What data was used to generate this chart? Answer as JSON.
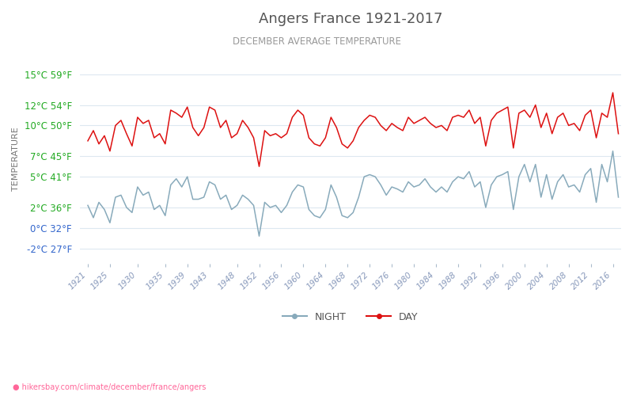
{
  "title": "Angers France 1921-2017",
  "subtitle": "DECEMBER AVERAGE TEMPERATURE",
  "ylabel": "TEMPERATURE",
  "url": "hikersbay.com/climate/december/france/angers",
  "title_color": "#555555",
  "subtitle_color": "#999999",
  "ylabel_color": "#777777",
  "background_color": "#ffffff",
  "grid_color": "#dde8f0",
  "years": [
    1921,
    1922,
    1923,
    1924,
    1925,
    1926,
    1927,
    1928,
    1929,
    1930,
    1931,
    1932,
    1933,
    1934,
    1935,
    1936,
    1937,
    1938,
    1939,
    1940,
    1941,
    1942,
    1943,
    1944,
    1945,
    1946,
    1947,
    1948,
    1949,
    1950,
    1951,
    1952,
    1953,
    1954,
    1955,
    1956,
    1957,
    1958,
    1959,
    1960,
    1961,
    1962,
    1963,
    1964,
    1965,
    1966,
    1967,
    1968,
    1969,
    1970,
    1971,
    1972,
    1973,
    1974,
    1975,
    1976,
    1977,
    1978,
    1979,
    1980,
    1981,
    1982,
    1983,
    1984,
    1985,
    1986,
    1987,
    1988,
    1989,
    1990,
    1991,
    1992,
    1993,
    1994,
    1995,
    1996,
    1997,
    1998,
    1999,
    2000,
    2001,
    2002,
    2003,
    2004,
    2005,
    2006,
    2007,
    2008,
    2009,
    2010,
    2011,
    2012,
    2013,
    2014,
    2015,
    2016,
    2017
  ],
  "day_temps": [
    8.5,
    9.5,
    8.2,
    9.0,
    7.5,
    10.0,
    10.5,
    9.2,
    8.0,
    10.8,
    10.2,
    10.5,
    8.8,
    9.2,
    8.2,
    11.5,
    11.2,
    10.8,
    11.8,
    9.8,
    9.0,
    9.8,
    11.8,
    11.5,
    9.8,
    10.5,
    8.8,
    9.2,
    10.5,
    9.8,
    8.8,
    6.0,
    9.5,
    9.0,
    9.2,
    8.8,
    9.2,
    10.8,
    11.5,
    11.0,
    8.8,
    8.2,
    8.0,
    8.8,
    10.8,
    9.8,
    8.2,
    7.8,
    8.5,
    9.8,
    10.5,
    11.0,
    10.8,
    10.0,
    9.5,
    10.2,
    9.8,
    9.5,
    10.8,
    10.2,
    10.5,
    10.8,
    10.2,
    9.8,
    10.0,
    9.5,
    10.8,
    11.0,
    10.8,
    11.5,
    10.2,
    10.8,
    8.0,
    10.5,
    11.2,
    11.5,
    11.8,
    7.8,
    11.2,
    11.5,
    10.8,
    12.0,
    9.8,
    11.2,
    9.2,
    10.8,
    11.2,
    10.0,
    10.2,
    9.5,
    11.0,
    11.5,
    8.8,
    11.2,
    10.8,
    13.2,
    9.2
  ],
  "night_temps": [
    2.2,
    1.0,
    2.5,
    1.8,
    0.5,
    3.0,
    3.2,
    2.0,
    1.5,
    4.0,
    3.2,
    3.5,
    1.8,
    2.2,
    1.2,
    4.2,
    4.8,
    4.0,
    5.0,
    2.8,
    2.8,
    3.0,
    4.5,
    4.2,
    2.8,
    3.2,
    1.8,
    2.2,
    3.2,
    2.8,
    2.2,
    -0.8,
    2.5,
    2.0,
    2.2,
    1.5,
    2.2,
    3.5,
    4.2,
    4.0,
    1.8,
    1.2,
    1.0,
    1.8,
    4.2,
    3.0,
    1.2,
    1.0,
    1.5,
    3.0,
    5.0,
    5.2,
    5.0,
    4.2,
    3.2,
    4.0,
    3.8,
    3.5,
    4.5,
    4.0,
    4.2,
    4.8,
    4.0,
    3.5,
    4.0,
    3.5,
    4.5,
    5.0,
    4.8,
    5.5,
    4.0,
    4.5,
    2.0,
    4.2,
    5.0,
    5.2,
    5.5,
    1.8,
    5.0,
    6.2,
    4.5,
    6.2,
    3.0,
    5.2,
    2.8,
    4.5,
    5.2,
    4.0,
    4.2,
    3.5,
    5.2,
    5.8,
    2.5,
    6.2,
    4.5,
    7.5,
    3.0
  ],
  "xticks": [
    1921,
    1925,
    1930,
    1935,
    1939,
    1943,
    1948,
    1952,
    1956,
    1960,
    1964,
    1968,
    1972,
    1976,
    1980,
    1984,
    1988,
    1992,
    1996,
    2000,
    2004,
    2008,
    2012,
    2016
  ],
  "yticks_c": [
    -2,
    0,
    2,
    5,
    7,
    10,
    12,
    15
  ],
  "yticks_f": [
    27,
    32,
    36,
    41,
    45,
    50,
    54,
    59
  ],
  "ylim": [
    -3.5,
    17.0
  ],
  "xlim": [
    1919.5,
    2017.5
  ],
  "day_color": "#dd1111",
  "night_color": "#88aabb",
  "legend_night": "NIGHT",
  "legend_day": "DAY",
  "night_label_color": "#4488aa",
  "day_label_color": "#cc3333"
}
